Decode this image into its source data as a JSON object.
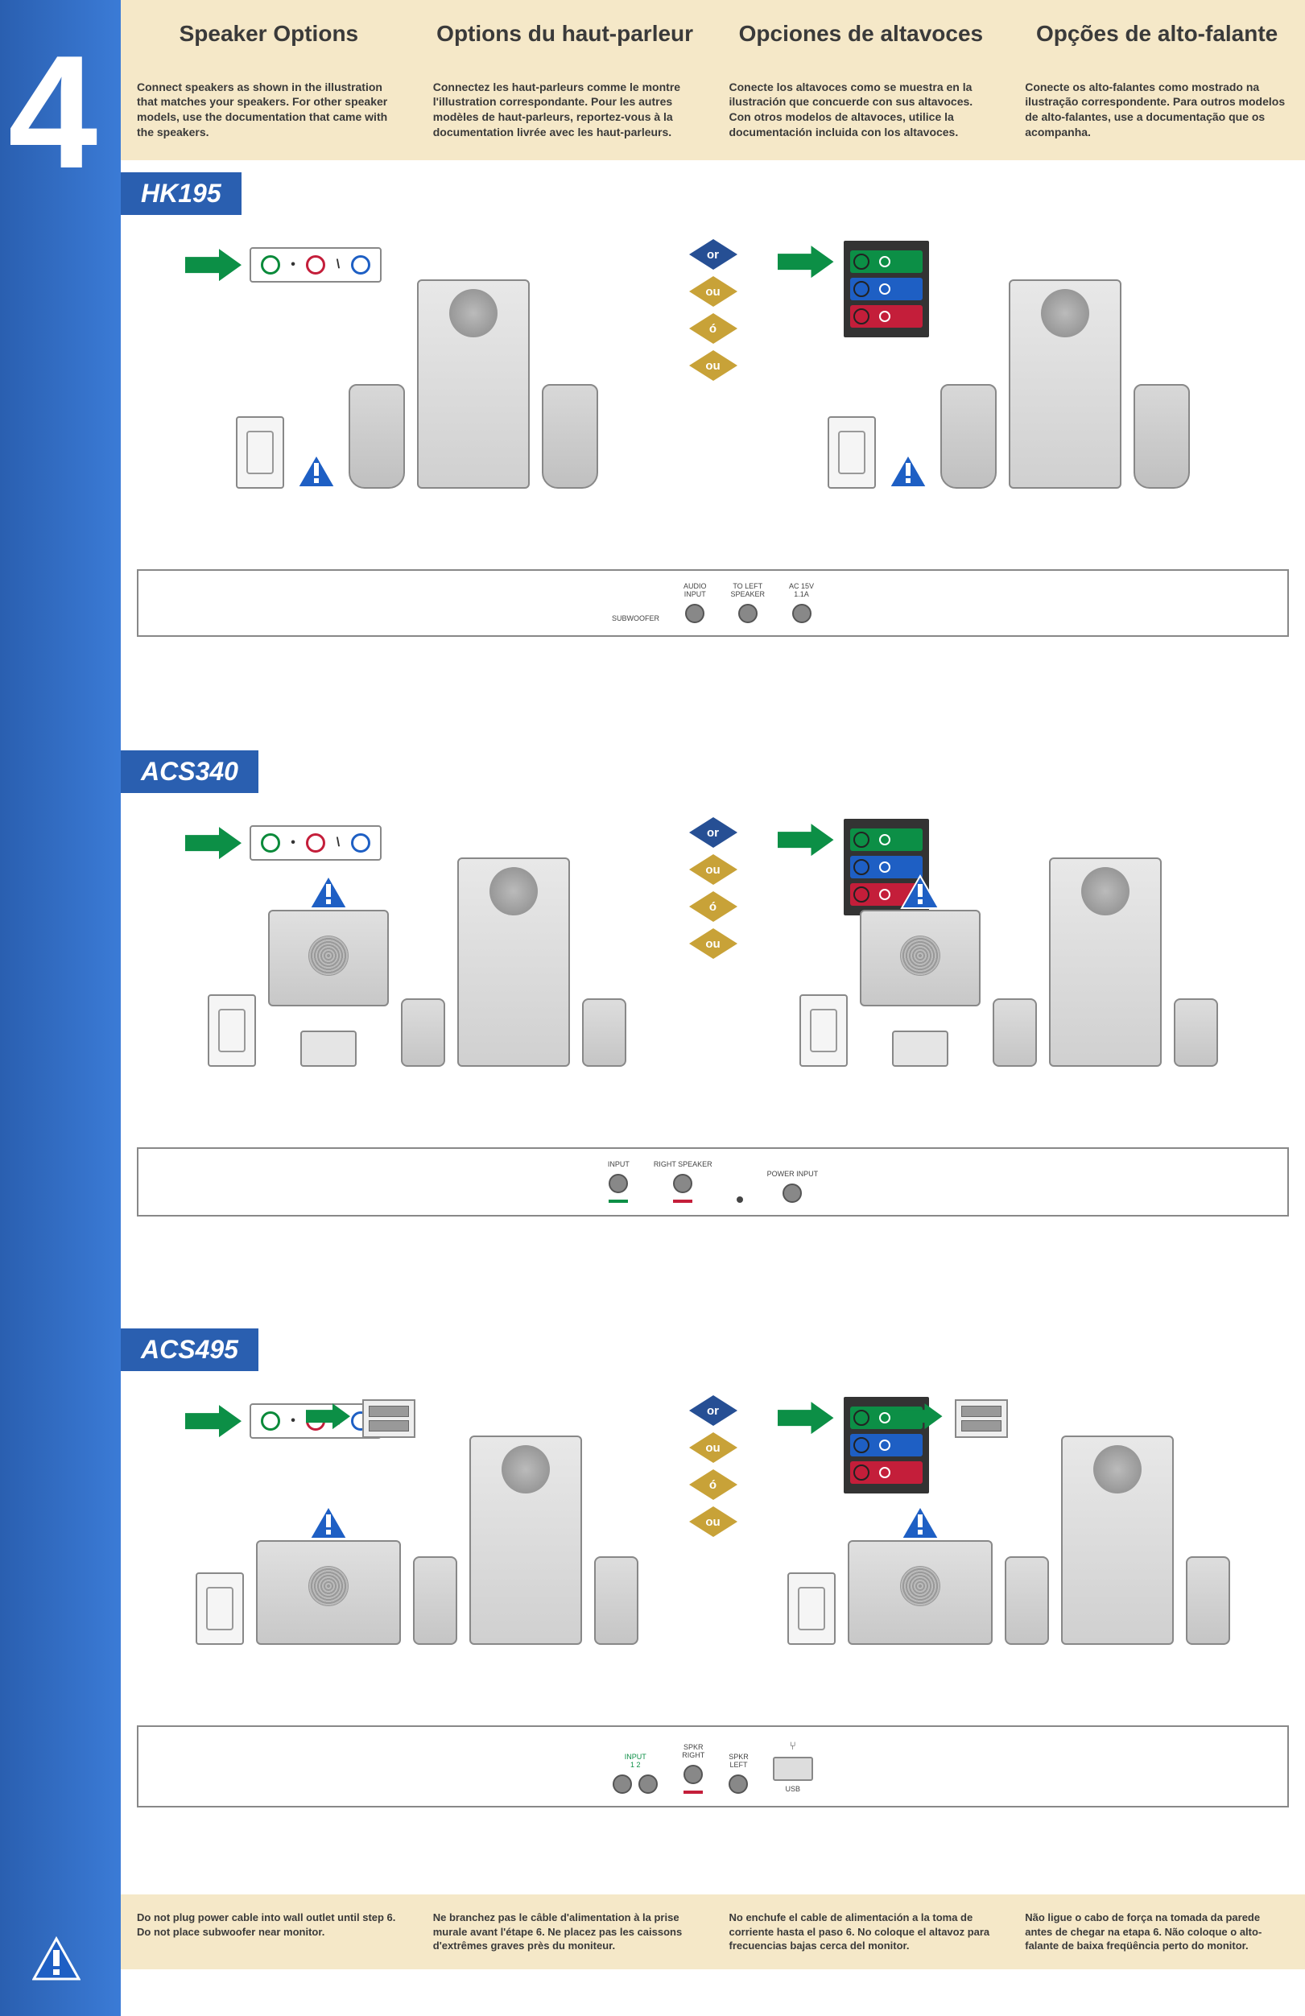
{
  "step_number": "4",
  "colors": {
    "sidebar_gradient_start": "#2a5fb0",
    "sidebar_gradient_end": "#3b7bd6",
    "header_bg": "#f5e8c8",
    "label_bg": "#2a5fb0",
    "label_text": "#ffffff",
    "jack_green": "#0c8f46",
    "jack_red": "#c41e3a",
    "jack_blue": "#1e5fc4",
    "diamond_blue": "#264f94",
    "diamond_gold": "#c8a238",
    "warn_blue": "#1e5fc4",
    "arrow_green": "#0c8f46"
  },
  "headers": [
    {
      "title": "Speaker Options",
      "text": "Connect speakers as shown in the illustration that matches your speakers. For other speaker models, use the documentation that came with the speakers."
    },
    {
      "title": "Options du haut-parleur",
      "text": "Connectez les haut-parleurs comme le montre l'illustration correspondante. Pour les autres modèles de haut-parleurs, reportez-vous à la documentation livrée avec les haut-parleurs."
    },
    {
      "title": "Opciones de altavoces",
      "text": "Conecte los altavoces como se muestra en la ilustración que concuerde con sus altavoces. Con otros modelos de altavoces, utilice la documentación incluida con los altavoces."
    },
    {
      "title": "Opções de alto-falante",
      "text": "Conecte os alto-falantes como mostrado na ilustração correspondente. Para outros modelos de alto-falantes, use a documentação que os acompanha."
    }
  ],
  "or_labels": [
    "or",
    "ou",
    "ó",
    "ou"
  ],
  "diamond_colors": [
    "#264f94",
    "#c8a238",
    "#c8a238",
    "#c8a238"
  ],
  "sections": [
    {
      "label": "HK195",
      "connector_box": {
        "items": [
          {
            "label": "SUBWOOFER",
            "type": "text"
          },
          {
            "label": "AUDIO\nINPUT",
            "type": "port"
          },
          {
            "label": "TO LEFT\nSPEAKER",
            "type": "port"
          },
          {
            "label": "AC 15V\n1.1A",
            "type": "port"
          }
        ]
      }
    },
    {
      "label": "ACS340",
      "connector_box": {
        "items": [
          {
            "label": "INPUT",
            "type": "port",
            "color": "#0c8f46"
          },
          {
            "label": "RIGHT SPEAKER",
            "type": "port",
            "color": "#c41e3a"
          },
          {
            "label": "",
            "type": "dot"
          },
          {
            "label": "POWER INPUT",
            "type": "port"
          }
        ]
      }
    },
    {
      "label": "ACS495",
      "connector_box": {
        "items": [
          {
            "label": "INPUT\n1    2",
            "type": "dualport",
            "colors": [
              "#0c8f46",
              "#0c8f46"
            ]
          },
          {
            "label": "SPKR\nRIGHT",
            "type": "port",
            "color": "#c41e3a"
          },
          {
            "label": "SPKR\nLEFT",
            "type": "port"
          },
          {
            "label": "USB",
            "type": "usb"
          }
        ]
      }
    }
  ],
  "footers": [
    "Do not plug power cable into wall outlet until step 6. Do not place subwoofer near monitor.",
    "Ne branchez pas le câble d'alimentation à la prise murale avant l'étape 6. Ne placez pas les caissons d'extrêmes graves près du moniteur.",
    "No enchufe el cable de alimentación a la toma de corriente hasta el paso 6. No coloque el altavoz para frecuencias bajas cerca del monitor.",
    "Não ligue o cabo de força na tomada da parede antes de chegar na etapa 6. Não coloque o alto-falante de baixa freqüência perto do monitor."
  ],
  "audio_card_rows": [
    {
      "bg": "#0c8f46",
      "icon": "speaker-out-icon"
    },
    {
      "bg": "#1e5fc4",
      "icon": "line-in-icon"
    },
    {
      "bg": "#c41e3a",
      "icon": "mic-icon"
    }
  ]
}
